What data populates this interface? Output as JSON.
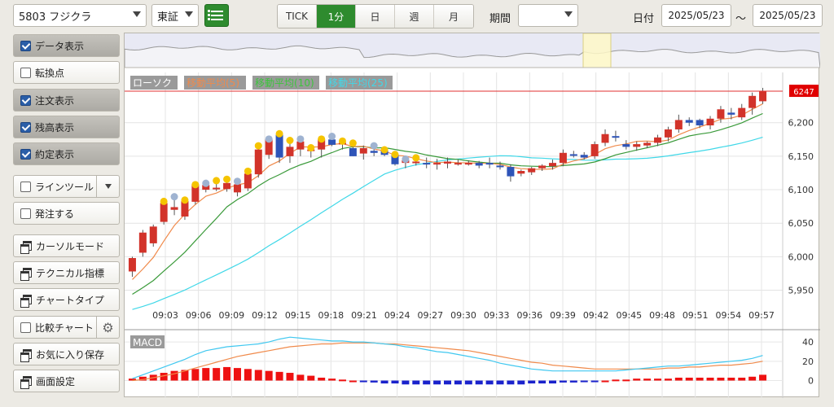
{
  "toolbar": {
    "stock_select": "5803 フジクラ",
    "exchange_select": "東証",
    "intervals": [
      "TICK",
      "1分",
      "日",
      "週",
      "月"
    ],
    "active_interval": "1分",
    "period_label": "期間",
    "period_value": "",
    "date_label": "日付",
    "date_from": "2025/05/23",
    "date_sep": "〜",
    "date_to": "2025/05/23"
  },
  "sidebar": {
    "data_display": "データ表示",
    "turning_points": "転換点",
    "order_display": "注文表示",
    "position_display": "残高表示",
    "execution_display": "約定表示",
    "line_tool": "ラインツール",
    "place_order": "発注する",
    "cursor_mode": "カーソルモード",
    "technical": "テクニカル指標",
    "chart_type": "チャートタイプ",
    "compare_chart": "比較チャート",
    "save_favorite": "お気に入り保存",
    "screen_settings": "画面設定"
  },
  "colors": {
    "up": "#d2332a",
    "down": "#2e54b8",
    "ma5": "#f08a4b",
    "ma10": "#3a9a3a",
    "ma25": "#40d8e8",
    "macd_line": "#40c8f0",
    "signal_line": "#f08a4b",
    "price_line": "#e03030",
    "accent": "#2e8b2e"
  },
  "chart": {
    "legend": [
      "ローソク",
      "移動平均(5)",
      "移動平均(10)",
      "移動平均(25)"
    ],
    "current_price": "6247",
    "macd_label": "MACD"
  },
  "chart_data": {
    "type": "candlestick",
    "x": [
      "09:03",
      "09:06",
      "09:09",
      "09:12",
      "09:15",
      "09:18",
      "09:21",
      "09:24",
      "09:27",
      "09:30",
      "09:33",
      "09:36",
      "09:39",
      "09:42",
      "09:45",
      "09:48",
      "09:51",
      "09:54",
      "09:57"
    ],
    "y_ticks": [
      5950,
      6000,
      6050,
      6100,
      6150,
      6200
    ],
    "ylim": [
      5930,
      6275
    ],
    "macd_ticks": [
      0,
      20,
      40
    ],
    "candles": [
      {
        "o": 5978,
        "h": 6000,
        "l": 5970,
        "c": 5998
      },
      {
        "o": 6006,
        "h": 6040,
        "l": 6000,
        "c": 6036
      },
      {
        "o": 6020,
        "h": 6048,
        "l": 6015,
        "c": 6045
      },
      {
        "o": 6052,
        "h": 6085,
        "l": 6048,
        "c": 6080
      },
      {
        "o": 6070,
        "h": 6092,
        "l": 6062,
        "c": 6074
      },
      {
        "o": 6060,
        "h": 6087,
        "l": 6055,
        "c": 6083
      },
      {
        "o": 6082,
        "h": 6110,
        "l": 6078,
        "c": 6108
      },
      {
        "o": 6100,
        "h": 6112,
        "l": 6096,
        "c": 6107
      },
      {
        "o": 6102,
        "h": 6116,
        "l": 6098,
        "c": 6103
      },
      {
        "o": 6101,
        "h": 6118,
        "l": 6097,
        "c": 6110
      },
      {
        "o": 6096,
        "h": 6115,
        "l": 6090,
        "c": 6108
      },
      {
        "o": 6102,
        "h": 6130,
        "l": 6098,
        "c": 6124
      },
      {
        "o": 6123,
        "h": 6168,
        "l": 6118,
        "c": 6160
      },
      {
        "o": 6152,
        "h": 6178,
        "l": 6146,
        "c": 6175
      },
      {
        "o": 6182,
        "h": 6186,
        "l": 6140,
        "c": 6148
      },
      {
        "o": 6150,
        "h": 6176,
        "l": 6140,
        "c": 6164
      },
      {
        "o": 6160,
        "h": 6178,
        "l": 6150,
        "c": 6172
      },
      {
        "o": 6158,
        "h": 6165,
        "l": 6148,
        "c": 6160
      },
      {
        "o": 6160,
        "h": 6178,
        "l": 6148,
        "c": 6175
      },
      {
        "o": 6175,
        "h": 6182,
        "l": 6165,
        "c": 6167
      },
      {
        "o": 6168,
        "h": 6175,
        "l": 6160,
        "c": 6170
      },
      {
        "o": 6162,
        "h": 6172,
        "l": 6150,
        "c": 6150
      },
      {
        "o": 6154,
        "h": 6166,
        "l": 6145,
        "c": 6162
      },
      {
        "o": 6158,
        "h": 6168,
        "l": 6150,
        "c": 6155
      },
      {
        "o": 6158,
        "h": 6162,
        "l": 6150,
        "c": 6152
      },
      {
        "o": 6152,
        "h": 6155,
        "l": 6136,
        "c": 6138
      },
      {
        "o": 6140,
        "h": 6148,
        "l": 6132,
        "c": 6144
      },
      {
        "o": 6142,
        "h": 6150,
        "l": 6136,
        "c": 6142
      },
      {
        "o": 6140,
        "h": 6148,
        "l": 6132,
        "c": 6138
      },
      {
        "o": 6138,
        "h": 6146,
        "l": 6130,
        "c": 6140
      },
      {
        "o": 6139,
        "h": 6148,
        "l": 6132,
        "c": 6142
      },
      {
        "o": 6140,
        "h": 6145,
        "l": 6136,
        "c": 6140
      },
      {
        "o": 6140,
        "h": 6144,
        "l": 6136,
        "c": 6140
      },
      {
        "o": 6140,
        "h": 6143,
        "l": 6132,
        "c": 6136
      },
      {
        "o": 6140,
        "h": 6148,
        "l": 6132,
        "c": 6138
      },
      {
        "o": 6136,
        "h": 6142,
        "l": 6130,
        "c": 6135
      },
      {
        "o": 6134,
        "h": 6138,
        "l": 6112,
        "c": 6120
      },
      {
        "o": 6124,
        "h": 6130,
        "l": 6120,
        "c": 6128
      },
      {
        "o": 6126,
        "h": 6134,
        "l": 6122,
        "c": 6132
      },
      {
        "o": 6132,
        "h": 6138,
        "l": 6128,
        "c": 6136
      },
      {
        "o": 6135,
        "h": 6145,
        "l": 6130,
        "c": 6140
      },
      {
        "o": 6140,
        "h": 6160,
        "l": 6135,
        "c": 6155
      },
      {
        "o": 6153,
        "h": 6158,
        "l": 6148,
        "c": 6152
      },
      {
        "o": 6152,
        "h": 6156,
        "l": 6145,
        "c": 6148
      },
      {
        "o": 6150,
        "h": 6172,
        "l": 6146,
        "c": 6168
      },
      {
        "o": 6170,
        "h": 6190,
        "l": 6165,
        "c": 6183
      },
      {
        "o": 6180,
        "h": 6188,
        "l": 6172,
        "c": 6178
      },
      {
        "o": 6168,
        "h": 6174,
        "l": 6160,
        "c": 6164
      },
      {
        "o": 6164,
        "h": 6172,
        "l": 6158,
        "c": 6168
      },
      {
        "o": 6166,
        "h": 6172,
        "l": 6162,
        "c": 6170
      },
      {
        "o": 6170,
        "h": 6182,
        "l": 6165,
        "c": 6178
      },
      {
        "o": 6178,
        "h": 6194,
        "l": 6172,
        "c": 6190
      },
      {
        "o": 6190,
        "h": 6212,
        "l": 6185,
        "c": 6204
      },
      {
        "o": 6204,
        "h": 6208,
        "l": 6195,
        "c": 6200
      },
      {
        "o": 6204,
        "h": 6206,
        "l": 6192,
        "c": 6196
      },
      {
        "o": 6196,
        "h": 6210,
        "l": 6190,
        "c": 6206
      },
      {
        "o": 6206,
        "h": 6225,
        "l": 6200,
        "c": 6220
      },
      {
        "o": 6215,
        "h": 6222,
        "l": 6205,
        "c": 6212
      },
      {
        "o": 6208,
        "h": 6228,
        "l": 6204,
        "c": 6222
      },
      {
        "o": 6222,
        "h": 6245,
        "l": 6212,
        "c": 6240
      },
      {
        "o": 6232,
        "h": 6252,
        "l": 6228,
        "c": 6247
      }
    ],
    "macd_hist": [
      2,
      4,
      6,
      8,
      10,
      11,
      12,
      13,
      13,
      14,
      13,
      12,
      11,
      10,
      9,
      8,
      6,
      5,
      3,
      2,
      1,
      0,
      -1,
      -2,
      -3,
      -3,
      -4,
      -4,
      -4,
      -4,
      -4,
      -4,
      -4,
      -4,
      -4,
      -4,
      -4,
      -4,
      -3,
      -3,
      -3,
      -2,
      -2,
      -1,
      -1,
      0,
      1,
      1,
      2,
      2,
      2,
      2,
      3,
      3,
      3,
      3,
      3,
      3,
      3,
      4,
      6
    ],
    "macd_line": [
      2,
      6,
      10,
      14,
      18,
      22,
      27,
      31,
      33,
      35,
      36,
      37,
      38,
      40,
      43,
      45,
      44,
      43,
      42,
      41,
      41,
      40,
      40,
      39,
      38,
      37,
      35,
      34,
      32,
      30,
      29,
      27,
      25,
      23,
      21,
      18,
      16,
      14,
      12,
      11,
      10,
      10,
      10,
      10,
      10,
      10,
      10,
      11,
      12,
      13,
      14,
      15,
      15,
      16,
      17,
      18,
      19,
      20,
      21,
      23,
      26
    ],
    "signal_line": [
      0,
      1,
      3,
      5,
      7,
      10,
      13,
      16,
      19,
      22,
      25,
      27,
      29,
      31,
      33,
      35,
      36,
      37,
      38,
      38,
      39,
      39,
      39,
      39,
      38,
      38,
      37,
      36,
      35,
      34,
      33,
      32,
      31,
      29,
      27,
      25,
      23,
      21,
      19,
      18,
      16,
      15,
      14,
      13,
      12,
      12,
      12,
      12,
      12,
      12,
      12,
      13,
      13,
      14,
      14,
      15,
      16,
      16,
      17,
      18,
      20
    ]
  }
}
